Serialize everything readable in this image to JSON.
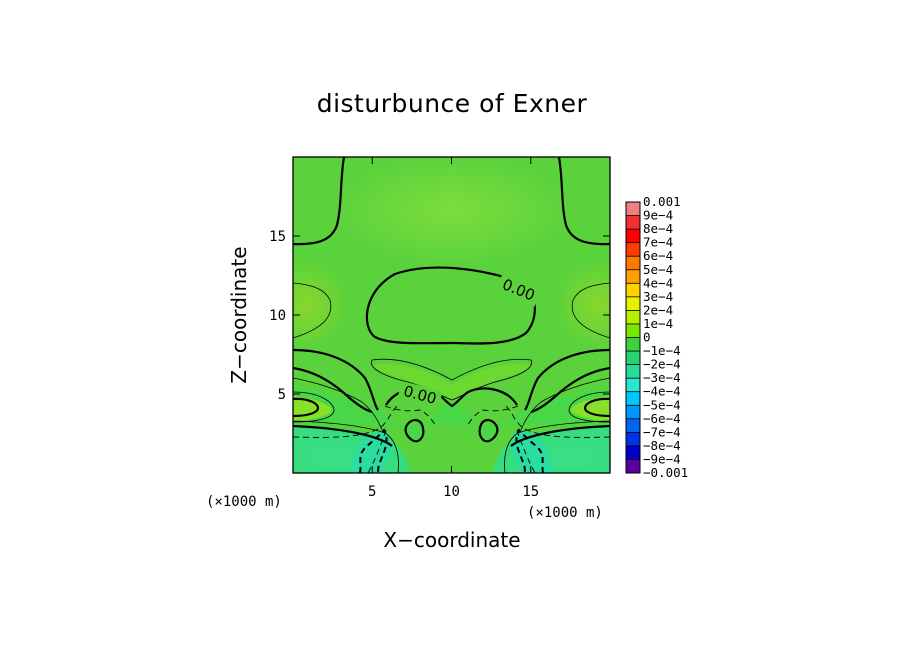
{
  "chart_data": {
    "type": "heatmap",
    "title": "disturbunce of Exner",
    "xlabel": "X−coordinate",
    "ylabel": "Z−coordinate",
    "x_unit_label": "(×1000 m)",
    "z_unit_label": "(×1000 m)",
    "xlim": [
      0,
      20
    ],
    "ylim": [
      0,
      20
    ],
    "x_ticks": [
      {
        "value": 5,
        "label": "5"
      },
      {
        "value": 10,
        "label": "10"
      },
      {
        "value": 15,
        "label": "15"
      }
    ],
    "y_ticks": [
      {
        "value": 5,
        "label": "5"
      },
      {
        "value": 10,
        "label": "10"
      },
      {
        "value": 15,
        "label": "15"
      }
    ],
    "contour_labels": [
      "0.00",
      "0.00"
    ],
    "colorbar": {
      "labels": [
        "0.001",
        "9e−4",
        "8e−4",
        "7e−4",
        "6e−4",
        "5e−4",
        "4e−4",
        "3e−4",
        "2e−4",
        "1e−4",
        "0",
        "−1e−4",
        "−2e−4",
        "−3e−4",
        "−4e−4",
        "−5e−4",
        "−6e−4",
        "−7e−4",
        "−8e−4",
        "−9e−4",
        "−0.001"
      ],
      "colors": [
        "#f08080",
        "#f03030",
        "#ff0000",
        "#ff3c00",
        "#ff7800",
        "#ffa000",
        "#ffd200",
        "#e6f000",
        "#b4f000",
        "#78e600",
        "#3cd23c",
        "#2ad26e",
        "#28dca0",
        "#28e6d2",
        "#00c8ff",
        "#0096ff",
        "#0064f0",
        "#0032e6",
        "#0000c8",
        "#5a00a0"
      ]
    },
    "grid": false,
    "legend": "colorbar-right"
  }
}
